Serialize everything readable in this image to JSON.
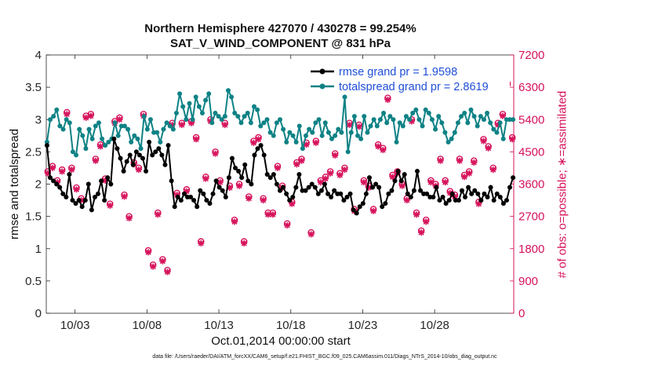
{
  "chart_data": {
    "type": "line",
    "title": "Northern Hemisphere 427070 / 430278 = 99.254%",
    "subtitle": "SAT_V_WIND_COMPONENT @ 831 hPa",
    "xlabel": "Oct.01,2014 00:00:00 start",
    "ylabel_left": "rmse and totalspread",
    "ylabel_right": "# of obs: o=possible; ∗=assimilated",
    "footnote": "data file: /Users/raeder/DAI/ATM_forcXX/CAM6_setup/f.e21.FHIST_BGC.f09_025.CAM6assim.011/Diags_NTrS_2014-10/obs_diag_output.nc",
    "xlim": [
      1.0,
      33.5
    ],
    "ylim_left": [
      0,
      4
    ],
    "ylim_right": [
      0,
      7200
    ],
    "x_ticks": [
      3,
      8,
      13,
      18,
      23,
      28
    ],
    "x_tick_labels": [
      "10/03",
      "10/08",
      "10/13",
      "10/18",
      "10/23",
      "10/28"
    ],
    "y_left_ticks": [
      "0",
      "0.5",
      "1",
      "1.5",
      "2",
      "2.5",
      "3",
      "3.5",
      "4"
    ],
    "y_right_ticks": [
      "0",
      "900",
      "1800",
      "2700",
      "3600",
      "4500",
      "5400",
      "6300",
      "7200"
    ],
    "legend_position": "top-right",
    "colors": {
      "rmse": "#000000",
      "spread": "#0f8285",
      "obs": "#d6125b",
      "legend_text": "#1f4fd6"
    },
    "series": [
      {
        "name": "rmse grand pr = 1.9598",
        "axis": "left",
        "values": [
          2.6,
          2.1,
          2.05,
          2.0,
          1.95,
          1.85,
          1.8,
          2.15,
          1.75,
          1.7,
          1.75,
          1.65,
          1.75,
          2.0,
          1.6,
          1.8,
          1.85,
          2.05,
          1.75,
          2.1,
          2.0,
          2.7,
          2.55,
          2.4,
          2.2,
          2.35,
          2.45,
          2.3,
          2.5,
          2.45,
          2.4,
          2.2,
          2.65,
          2.45,
          2.5,
          2.55,
          2.45,
          2.3,
          2.6,
          2.05,
          1.65,
          1.8,
          1.75,
          1.85,
          1.8,
          1.8,
          1.75,
          1.65,
          1.9,
          1.85,
          1.75,
          1.7,
          1.85,
          2.05,
          1.95,
          1.9,
          1.8,
          2.1,
          2.4,
          2.25,
          2.2,
          2.1,
          2.3,
          2.05,
          2.0,
          2.45,
          2.55,
          2.6,
          2.45,
          2.15,
          2.1,
          2.15,
          2.0,
          1.9,
          1.95,
          1.85,
          1.75,
          1.8,
          1.95,
          2.15,
          1.9,
          1.9,
          1.95,
          2.0,
          1.95,
          1.85,
          1.9,
          2.0,
          1.85,
          1.8,
          1.9,
          1.85,
          1.85,
          1.75,
          1.8,
          1.85,
          1.6,
          1.55,
          1.65,
          1.7,
          1.85,
          2.1,
          1.95,
          2.0,
          1.95,
          1.65,
          1.7,
          1.85,
          1.9,
          2.05,
          2.2,
          2.05,
          2.15,
          1.85,
          1.8,
          1.9,
          2.2,
          1.9,
          1.85,
          1.85,
          1.8,
          1.8,
          1.95,
          1.75,
          1.8,
          1.7,
          1.75,
          1.85,
          1.75,
          1.75,
          1.9,
          1.8,
          1.95,
          1.85,
          1.9,
          1.85,
          1.75,
          1.85,
          1.8,
          1.95,
          1.75,
          1.85,
          1.8,
          1.7,
          1.75,
          1.95,
          2.1
        ]
      },
      {
        "name": "totalspread grand pr = 2.8619",
        "axis": "left",
        "values": [
          2.65,
          3.0,
          3.05,
          3.15,
          2.9,
          2.85,
          3.0,
          2.95,
          2.5,
          2.45,
          2.85,
          2.75,
          2.55,
          2.85,
          2.7,
          2.9,
          2.95,
          2.7,
          2.6,
          2.65,
          2.7,
          2.95,
          2.75,
          2.9,
          2.9,
          2.85,
          2.65,
          2.75,
          2.7,
          2.55,
          3.05,
          2.85,
          3.0,
          2.8,
          2.8,
          2.65,
          2.85,
          2.95,
          2.9,
          2.85,
          3.1,
          3.4,
          3.2,
          3.0,
          3.25,
          3.0,
          3.35,
          3.2,
          3.1,
          3.3,
          3.4,
          2.95,
          3.1,
          3.05,
          3.0,
          3.05,
          3.45,
          3.35,
          3.1,
          3.05,
          2.95,
          3.05,
          3.1,
          2.95,
          3.2,
          3.15,
          2.9,
          2.95,
          3.0,
          2.8,
          2.75,
          2.95,
          3.0,
          2.85,
          2.65,
          2.8,
          2.75,
          2.65,
          2.9,
          2.55,
          2.75,
          2.85,
          2.8,
          2.95,
          3.0,
          2.75,
          2.95,
          2.8,
          2.7,
          2.75,
          2.85,
          2.8,
          3.35,
          2.5,
          2.8,
          3.05,
          2.75,
          2.7,
          3.05,
          2.8,
          2.9,
          3.0,
          2.9,
          3.0,
          3.1,
          2.95,
          3.05,
          3.0,
          2.65,
          2.95,
          2.9,
          3.05,
          3.0,
          3.1,
          3.15,
          3.0,
          2.9,
          3.15,
          3.1,
          3.0,
          2.85,
          3.05,
          2.95,
          2.8,
          2.65,
          2.7,
          2.8,
          2.95,
          3.05,
          3.1,
          2.95,
          3.15,
          3.05,
          2.9,
          3.05,
          3.0,
          3.1,
          2.95,
          2.85,
          2.8,
          2.95,
          2.7,
          3.0,
          3.0,
          3.0
        ]
      },
      {
        "name": "possible",
        "axis": "right",
        "values": [
          3950,
          4100,
          3700,
          4000,
          5600,
          4050,
          3500,
          3200,
          5500,
          5550,
          4300,
          4700,
          3750,
          3050,
          5350,
          5450,
          3300,
          2700,
          4200,
          4050,
          5550,
          1750,
          1350,
          2800,
          1500,
          1200,
          5300,
          3350,
          5300,
          3450,
          5350,
          4900,
          2000,
          3800,
          5400,
          4500,
          3700,
          5300,
          3550,
          2600,
          3600,
          2000,
          3250,
          4800,
          4900,
          3200,
          2800,
          2800,
          4100,
          3550,
          2500,
          3100,
          4200,
          4300,
          4750,
          2250,
          4800,
          3700,
          3800,
          3950,
          4450,
          3900,
          4050,
          5300,
          2900,
          5250,
          3700,
          3550,
          2900,
          4700,
          4600,
          6000,
          3850,
          3950,
          3600,
          3200,
          5400,
          2800,
          2300,
          2600,
          3700,
          3600,
          4300,
          3700,
          3400,
          3300,
          4300,
          3850,
          3950,
          4250,
          3100,
          4850,
          4650,
          4050,
          5300,
          5550,
          6400,
          4900
        ]
      },
      {
        "name": "assimilated",
        "axis": "right",
        "values": [
          3900,
          4050,
          3650,
          3950,
          5550,
          4000,
          3450,
          3150,
          5450,
          5500,
          4250,
          4650,
          3700,
          3000,
          5300,
          5400,
          3250,
          2650,
          4150,
          4000,
          5500,
          1700,
          1300,
          2750,
          1450,
          1150,
          5250,
          3300,
          5250,
          3400,
          5300,
          4850,
          1950,
          3750,
          5350,
          4450,
          3650,
          5250,
          3500,
          2550,
          3550,
          1950,
          3200,
          4750,
          4850,
          3150,
          2750,
          2750,
          4050,
          3500,
          2450,
          3050,
          4150,
          4250,
          4700,
          2200,
          4750,
          3650,
          3750,
          3900,
          4400,
          3850,
          4000,
          5250,
          2850,
          5200,
          3650,
          3500,
          2850,
          4650,
          4550,
          5950,
          3800,
          3900,
          3550,
          3150,
          5350,
          2750,
          2250,
          2550,
          3650,
          3550,
          4250,
          3650,
          3350,
          3250,
          4250,
          3800,
          3900,
          4200,
          3050,
          4800,
          4600,
          4000,
          5250,
          5500,
          6350,
          4850
        ]
      }
    ]
  }
}
